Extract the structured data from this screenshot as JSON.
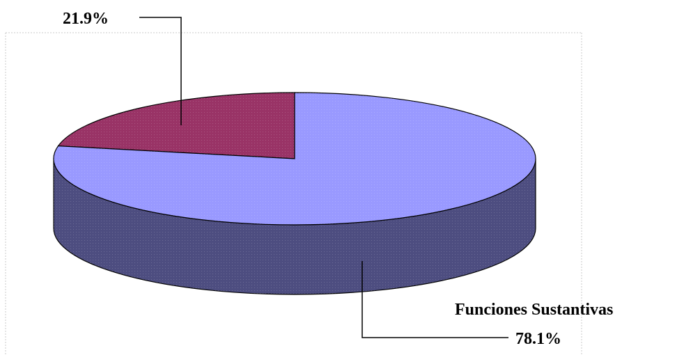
{
  "chart_data": {
    "type": "pie",
    "style": "3d",
    "slices": [
      {
        "name": "",
        "percent_label": "21.9%",
        "value": 21.9,
        "color": "#993366"
      },
      {
        "name": "Funciones Sustantivas",
        "percent_label": "78.1%",
        "value": 78.1,
        "color": "#9999ff"
      }
    ],
    "side_color": "#4d4d80",
    "legend": "none",
    "title": ""
  }
}
